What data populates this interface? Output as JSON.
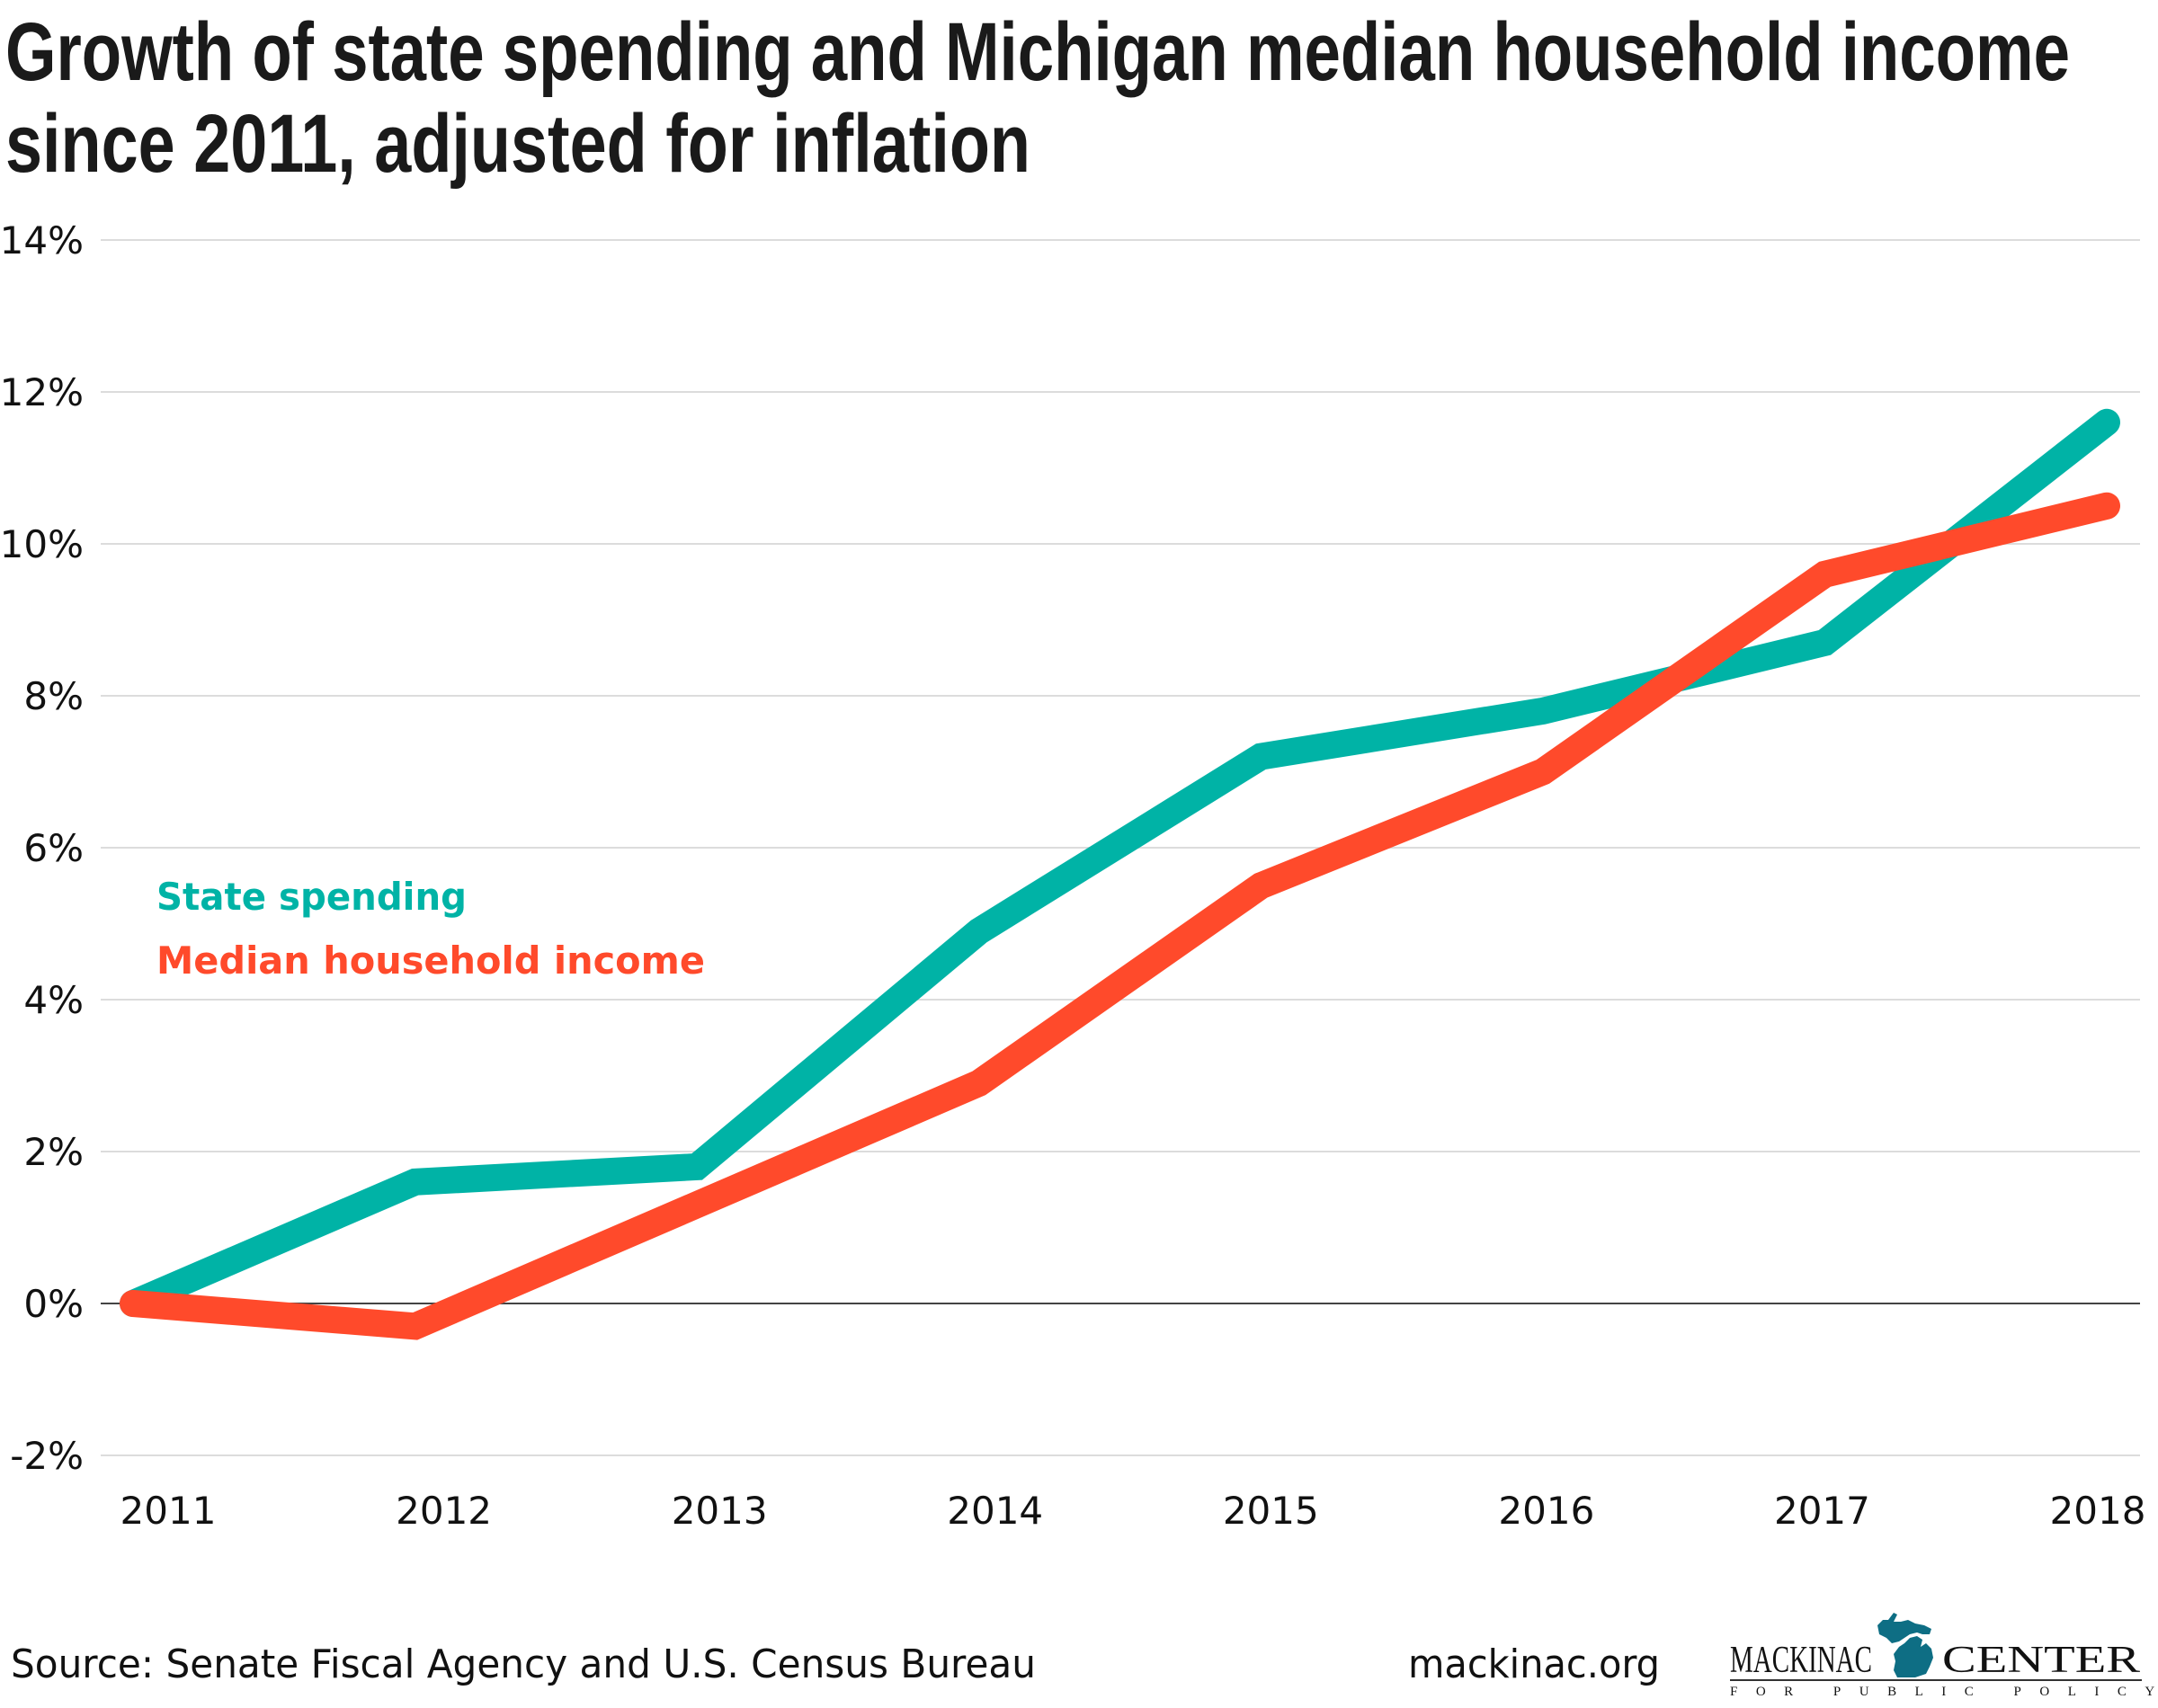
{
  "title": {
    "line1": "Growth of state spending and Michigan median household income",
    "line2": "since 2011, adjusted for inflation"
  },
  "footer": {
    "source": "Source: Senate Fiscal Agency and U.S. Census Bureau",
    "site": "mackinac.org"
  },
  "logo": {
    "left_word": "MACKINAC",
    "right_word": "CENTER",
    "subtitle": "FOR PUBLIC POLICY",
    "map_icon": "michigan-map-icon",
    "map_color": "#0e6e84"
  },
  "chart_data": {
    "type": "line",
    "title": "Growth of state spending and Michigan median household income since 2011, adjusted for inflation",
    "xlabel": "",
    "ylabel": "",
    "x": [
      "2011",
      "2012",
      "2013",
      "2014",
      "2015",
      "2016",
      "2017",
      "2018"
    ],
    "ylim": [
      -2,
      14
    ],
    "yticks": [
      -2,
      0,
      2,
      4,
      6,
      8,
      10,
      12,
      14
    ],
    "ytick_labels": [
      "-2%",
      "0%",
      "2%",
      "4%",
      "6%",
      "8%",
      "10%",
      "12%",
      "14%"
    ],
    "grid": true,
    "zero_line": true,
    "legend_placement": "left-middle",
    "series": [
      {
        "name": "State spending",
        "color": "#00b3a6",
        "values": [
          0,
          1.6,
          1.8,
          4.9,
          7.2,
          7.8,
          8.7,
          11.6
        ]
      },
      {
        "name": "Median household income",
        "color": "#ff4a2b",
        "values": [
          0,
          -0.3,
          1.3,
          2.9,
          5.5,
          7.0,
          9.6,
          10.5
        ]
      }
    ]
  }
}
